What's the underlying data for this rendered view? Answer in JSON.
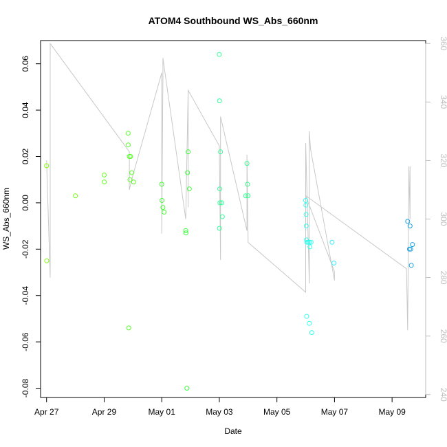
{
  "chart_data": {
    "type": "scatter",
    "title": "ATOM4 Southbound WS_Abs_660nm",
    "xlabel": "Date",
    "ylabel": "WS_Abs_660nm",
    "x_axis": {
      "type": "date",
      "range": [
        "2014-04-26T19:00",
        "2014-05-10T04:00"
      ],
      "ticks": [
        {
          "value": "2014-04-27T00:00",
          "label": "Apr 27"
        },
        {
          "value": "2014-04-29T00:00",
          "label": "Apr 29"
        },
        {
          "value": "2014-05-01T00:00",
          "label": "May 01"
        },
        {
          "value": "2014-05-03T00:00",
          "label": "May 03"
        },
        {
          "value": "2014-05-05T00:00",
          "label": "May 05"
        },
        {
          "value": "2014-05-07T00:00",
          "label": "May 07"
        },
        {
          "value": "2014-05-09T00:00",
          "label": "May 09"
        }
      ]
    },
    "y_axis": {
      "range": [
        -0.084,
        0.07
      ],
      "ticks": [
        {
          "value": -0.08,
          "label": "-0.08"
        },
        {
          "value": -0.06,
          "label": "-0.06"
        },
        {
          "value": -0.04,
          "label": "-0.04"
        },
        {
          "value": -0.02,
          "label": "-0.02"
        },
        {
          "value": 0.0,
          "label": "0.00"
        },
        {
          "value": 0.02,
          "label": "0.02"
        },
        {
          "value": 0.04,
          "label": "0.04"
        },
        {
          "value": 0.06,
          "label": "0.06"
        }
      ]
    },
    "y2_axis": {
      "range": [
        239,
        361
      ],
      "color": "#bebebe",
      "ticks": [
        {
          "value": 240,
          "label": "240"
        },
        {
          "value": 260,
          "label": "260"
        },
        {
          "value": 280,
          "label": "280"
        },
        {
          "value": 300,
          "label": "300"
        },
        {
          "value": 320,
          "label": "320"
        },
        {
          "value": 340,
          "label": "340"
        },
        {
          "value": 360,
          "label": "360"
        }
      ]
    },
    "grid": false,
    "legend": "none",
    "points": [
      {
        "x": "2014-04-27T00:00",
        "y": 0.016,
        "color": "#7fff00"
      },
      {
        "x": "2014-04-27T00:10",
        "y": -0.025,
        "color": "#7fff00"
      },
      {
        "x": "2014-04-28T00:00",
        "y": 0.003,
        "color": "#70ff10"
      },
      {
        "x": "2014-04-29T00:00",
        "y": 0.012,
        "color": "#66ff1a"
      },
      {
        "x": "2014-04-29T00:05",
        "y": 0.009,
        "color": "#66ff1a"
      },
      {
        "x": "2014-04-29T20:00",
        "y": 0.03,
        "color": "#55ff22"
      },
      {
        "x": "2014-04-29T20:05",
        "y": 0.025,
        "color": "#55ff22"
      },
      {
        "x": "2014-04-29T21:00",
        "y": 0.02,
        "color": "#55ff22"
      },
      {
        "x": "2014-04-29T22:00",
        "y": 0.02,
        "color": "#55ff22"
      },
      {
        "x": "2014-04-29T23:00",
        "y": 0.013,
        "color": "#55ff22"
      },
      {
        "x": "2014-04-29T21:30",
        "y": 0.01,
        "color": "#55ff22"
      },
      {
        "x": "2014-04-30T00:30",
        "y": 0.009,
        "color": "#55ff22"
      },
      {
        "x": "2014-04-29T20:30",
        "y": -0.054,
        "color": "#55ff22"
      },
      {
        "x": "2014-05-01T00:00",
        "y": 0.008,
        "color": "#44ff33"
      },
      {
        "x": "2014-05-01T00:10",
        "y": 0.001,
        "color": "#44ff33"
      },
      {
        "x": "2014-05-01T01:00",
        "y": -0.002,
        "color": "#44ff33"
      },
      {
        "x": "2014-05-01T02:00",
        "y": -0.004,
        "color": "#44ff33"
      },
      {
        "x": "2014-05-01T20:00",
        "y": -0.012,
        "color": "#3cff3c"
      },
      {
        "x": "2014-05-01T20:10",
        "y": -0.013,
        "color": "#3cff3c"
      },
      {
        "x": "2014-05-01T22:00",
        "y": 0.022,
        "color": "#3cff3c"
      },
      {
        "x": "2014-05-01T21:30",
        "y": 0.013,
        "color": "#3cff3c"
      },
      {
        "x": "2014-05-01T23:00",
        "y": 0.006,
        "color": "#3cff3c"
      },
      {
        "x": "2014-05-01T21:00",
        "y": -0.08,
        "color": "#3cff3c"
      },
      {
        "x": "2014-05-03T00:00",
        "y": 0.064,
        "color": "#33ff99"
      },
      {
        "x": "2014-05-03T00:10",
        "y": 0.044,
        "color": "#33ff99"
      },
      {
        "x": "2014-05-03T01:00",
        "y": 0.022,
        "color": "#33ff99"
      },
      {
        "x": "2014-05-03T00:20",
        "y": 0.006,
        "color": "#33ff99"
      },
      {
        "x": "2014-05-03T00:30",
        "y": 0.0,
        "color": "#33ff99"
      },
      {
        "x": "2014-05-03T02:00",
        "y": 0.0,
        "color": "#33ff99"
      },
      {
        "x": "2014-05-03T02:30",
        "y": -0.006,
        "color": "#33ff99"
      },
      {
        "x": "2014-05-03T00:05",
        "y": -0.011,
        "color": "#33ff99"
      },
      {
        "x": "2014-05-03T23:00",
        "y": 0.017,
        "color": "#33ff88"
      },
      {
        "x": "2014-05-03T23:30",
        "y": 0.008,
        "color": "#33ff88"
      },
      {
        "x": "2014-05-03T22:00",
        "y": 0.003,
        "color": "#33ff88"
      },
      {
        "x": "2014-05-04T00:00",
        "y": 0.003,
        "color": "#33ff88"
      },
      {
        "x": "2014-05-06T00:00",
        "y": 0.001,
        "color": "#33ffee"
      },
      {
        "x": "2014-05-06T00:10",
        "y": -0.001,
        "color": "#33ffee"
      },
      {
        "x": "2014-05-06T00:20",
        "y": -0.005,
        "color": "#33ffee"
      },
      {
        "x": "2014-05-06T00:30",
        "y": -0.01,
        "color": "#33ffee"
      },
      {
        "x": "2014-05-06T00:40",
        "y": -0.016,
        "color": "#33ffee"
      },
      {
        "x": "2014-05-06T01:00",
        "y": -0.017,
        "color": "#33ffee"
      },
      {
        "x": "2014-05-06T02:00",
        "y": -0.017,
        "color": "#33ffee"
      },
      {
        "x": "2014-05-06T03:00",
        "y": -0.017,
        "color": "#33ffee"
      },
      {
        "x": "2014-05-06T03:30",
        "y": -0.019,
        "color": "#33ffee"
      },
      {
        "x": "2014-05-06T04:30",
        "y": -0.017,
        "color": "#33ffee"
      },
      {
        "x": "2014-05-06T00:50",
        "y": -0.049,
        "color": "#33ffee"
      },
      {
        "x": "2014-05-06T03:00",
        "y": -0.052,
        "color": "#33ffee"
      },
      {
        "x": "2014-05-06T05:00",
        "y": -0.056,
        "color": "#33ffee"
      },
      {
        "x": "2014-05-06T22:00",
        "y": -0.017,
        "color": "#33eeff"
      },
      {
        "x": "2014-05-06T23:30",
        "y": -0.026,
        "color": "#33eeff"
      },
      {
        "x": "2014-05-09T13:00",
        "y": -0.008,
        "color": "#1aa0e0"
      },
      {
        "x": "2014-05-09T15:00",
        "y": -0.01,
        "color": "#1aa0e0"
      },
      {
        "x": "2014-05-09T14:30",
        "y": -0.02,
        "color": "#1aa0e0"
      },
      {
        "x": "2014-05-09T15:30",
        "y": -0.02,
        "color": "#1aa0e0"
      },
      {
        "x": "2014-05-09T17:00",
        "y": -0.018,
        "color": "#1aa0e0"
      },
      {
        "x": "2014-05-09T16:00",
        "y": -0.027,
        "color": "#1aa0e0"
      }
    ],
    "line_series": {
      "axis": "right",
      "color": "#c8c8c8",
      "points": [
        {
          "x": "2014-04-27T00:00",
          "y": 320
        },
        {
          "x": "2014-04-27T03:00",
          "y": 280
        },
        {
          "x": "2014-04-27T03:00",
          "y": 360
        },
        {
          "x": "2014-04-29T21:00",
          "y": 323
        },
        {
          "x": "2014-04-29T21:00",
          "y": 310
        },
        {
          "x": "2014-04-30T00:00",
          "y": 315
        },
        {
          "x": "2014-05-01T00:00",
          "y": 350
        },
        {
          "x": "2014-05-01T00:00",
          "y": 295
        },
        {
          "x": "2014-05-01T01:00",
          "y": 348
        },
        {
          "x": "2014-05-01T01:00",
          "y": 355
        },
        {
          "x": "2014-05-01T20:00",
          "y": 300
        },
        {
          "x": "2014-05-01T22:00",
          "y": 344
        },
        {
          "x": "2014-05-01T22:00",
          "y": 307
        },
        {
          "x": "2014-05-01T22:00",
          "y": 304
        },
        {
          "x": "2014-05-01T22:00",
          "y": 344
        },
        {
          "x": "2014-05-03T00:00",
          "y": 325
        },
        {
          "x": "2014-05-03T01:00",
          "y": 286
        },
        {
          "x": "2014-05-03T01:00",
          "y": 335
        },
        {
          "x": "2014-05-03T23:00",
          "y": 296
        },
        {
          "x": "2014-05-03T23:00",
          "y": 322
        },
        {
          "x": "2014-05-04T00:00",
          "y": 292
        },
        {
          "x": "2014-05-06T00:00",
          "y": 275
        },
        {
          "x": "2014-05-06T00:00",
          "y": 326
        },
        {
          "x": "2014-05-06T03:00",
          "y": 278
        },
        {
          "x": "2014-05-06T03:00",
          "y": 330
        },
        {
          "x": "2014-05-06T04:00",
          "y": 324
        },
        {
          "x": "2014-05-07T00:00",
          "y": 279
        },
        {
          "x": "2014-05-07T00:00",
          "y": 282
        },
        {
          "x": "2014-05-06T00:00",
          "y": 308
        },
        {
          "x": "2014-05-09T12:00",
          "y": 283
        },
        {
          "x": "2014-05-09T13:00",
          "y": 262
        },
        {
          "x": "2014-05-09T14:00",
          "y": 318
        },
        {
          "x": "2014-05-09T15:00",
          "y": 300
        },
        {
          "x": "2014-05-09T15:00",
          "y": 318
        }
      ]
    }
  }
}
